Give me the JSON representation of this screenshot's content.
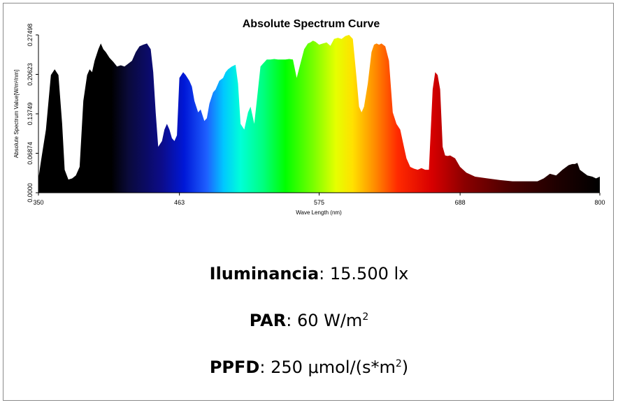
{
  "chart_data": {
    "type": "area",
    "title": "Absolute Spectrum Curve",
    "xlabel": "Wave Length (nm)",
    "ylabel": "Absolute Spectrum Value[W/m²/nm]",
    "xlim": [
      350,
      800
    ],
    "ylim": [
      0,
      0.27498
    ],
    "x_ticks": [
      350,
      463,
      575,
      688,
      800
    ],
    "x_tick_labels": [
      "350",
      "463",
      "575",
      "688",
      "800"
    ],
    "y_ticks": [
      0.0,
      0.06874,
      0.13749,
      0.20623,
      0.27498
    ],
    "y_tick_labels": [
      "0.0000",
      "0.06874",
      "0.13749",
      "0.20623",
      "0.27498"
    ],
    "grid": false,
    "fill": "wavelength-spectrum-gradient",
    "x": [
      350,
      352,
      356,
      360,
      363,
      366,
      369,
      371,
      374,
      377,
      380,
      383,
      386,
      389,
      391,
      393,
      395,
      398,
      400,
      402,
      404,
      407,
      410,
      413,
      416,
      419,
      422,
      425,
      428,
      431,
      434,
      437,
      440,
      442,
      444,
      446,
      449,
      451,
      453,
      455,
      457,
      459,
      461,
      463,
      466,
      468,
      471,
      473,
      475,
      478,
      480,
      483,
      485,
      487,
      490,
      492,
      495,
      498,
      500,
      502,
      505,
      508,
      510,
      512,
      515,
      518,
      520,
      523,
      525,
      528,
      530,
      533,
      536,
      539,
      542,
      545,
      548,
      551,
      554,
      557,
      560,
      563,
      566,
      568,
      570,
      572,
      575,
      578,
      581,
      584,
      587,
      590,
      593,
      596,
      599,
      602,
      605,
      607,
      609,
      611,
      614,
      617,
      619,
      621,
      623,
      625,
      628,
      631,
      634,
      637,
      640,
      643,
      645,
      648,
      651,
      654,
      657,
      660,
      663,
      666,
      668,
      670,
      672,
      674,
      676,
      678,
      680,
      684,
      688,
      693,
      700,
      710,
      720,
      730,
      740,
      750,
      755,
      760,
      765,
      770,
      775,
      778,
      780,
      782,
      784,
      787,
      790,
      794,
      797,
      800
    ],
    "y": [
      0.025,
      0.055,
      0.11,
      0.205,
      0.215,
      0.205,
      0.12,
      0.04,
      0.023,
      0.025,
      0.03,
      0.045,
      0.16,
      0.205,
      0.215,
      0.21,
      0.23,
      0.25,
      0.26,
      0.25,
      0.245,
      0.235,
      0.228,
      0.22,
      0.222,
      0.22,
      0.225,
      0.23,
      0.245,
      0.255,
      0.258,
      0.26,
      0.25,
      0.21,
      0.14,
      0.08,
      0.09,
      0.11,
      0.12,
      0.11,
      0.095,
      0.09,
      0.1,
      0.2,
      0.21,
      0.205,
      0.195,
      0.185,
      0.16,
      0.14,
      0.145,
      0.125,
      0.13,
      0.155,
      0.175,
      0.18,
      0.195,
      0.2,
      0.21,
      0.215,
      0.22,
      0.223,
      0.19,
      0.12,
      0.11,
      0.14,
      0.15,
      0.12,
      0.16,
      0.22,
      0.225,
      0.232,
      0.232,
      0.233,
      0.232,
      0.232,
      0.232,
      0.233,
      0.232,
      0.2,
      0.225,
      0.25,
      0.26,
      0.262,
      0.265,
      0.263,
      0.258,
      0.26,
      0.262,
      0.256,
      0.268,
      0.27,
      0.268,
      0.273,
      0.275,
      0.268,
      0.2,
      0.15,
      0.14,
      0.15,
      0.19,
      0.245,
      0.258,
      0.26,
      0.258,
      0.26,
      0.255,
      0.23,
      0.14,
      0.12,
      0.11,
      0.08,
      0.06,
      0.045,
      0.042,
      0.04,
      0.043,
      0.04,
      0.04,
      0.18,
      0.21,
      0.205,
      0.18,
      0.08,
      0.065,
      0.064,
      0.065,
      0.06,
      0.045,
      0.035,
      0.028,
      0.025,
      0.022,
      0.02,
      0.02,
      0.02,
      0.025,
      0.033,
      0.03,
      0.04,
      0.048,
      0.05,
      0.05,
      0.052,
      0.04,
      0.035,
      0.03,
      0.028,
      0.025,
      0.028
    ]
  },
  "metrics": [
    {
      "label": "Iluminancia",
      "separator": ":",
      "value": "15.500 lx",
      "unit_sup": ""
    },
    {
      "label": "PAR",
      "separator": ":",
      "value": "60 W/m",
      "unit_sup": "2"
    },
    {
      "label": "PPFD",
      "separator": ":",
      "value": "250 μmol/(s*m",
      "unit_sup": "2",
      "value_suffix": ")"
    }
  ]
}
